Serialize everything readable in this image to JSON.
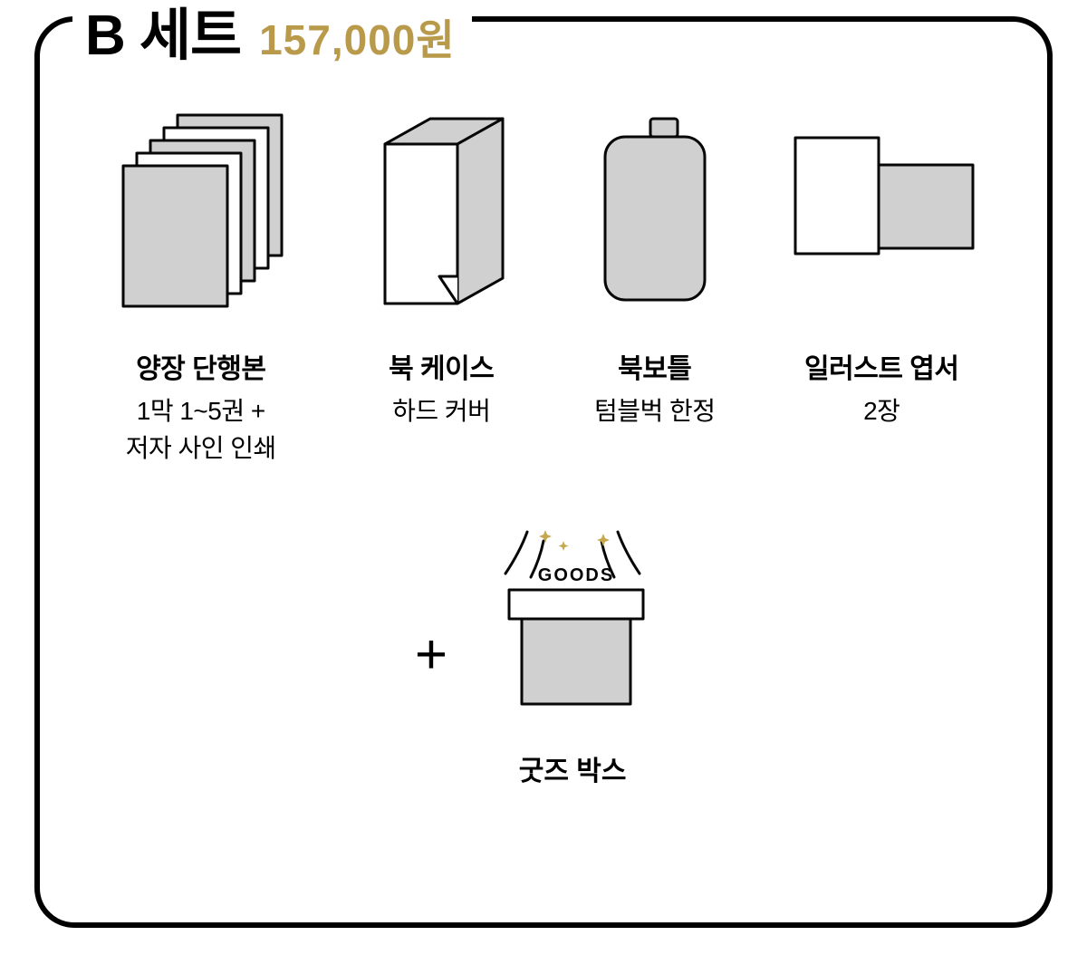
{
  "set": {
    "title": "B 세트",
    "price": "157,000원",
    "price_color": "#b89a4a"
  },
  "items": {
    "book": {
      "title": "양장 단행본",
      "sub": "1막 1~5권 +\n저자 사인 인쇄"
    },
    "case": {
      "title": "북 케이스",
      "sub": "하드 커버"
    },
    "bottle": {
      "title": "북보틀",
      "sub": "텀블벅 한정"
    },
    "postcard": {
      "title": "일러스트 엽서",
      "sub": "2장"
    },
    "goods": {
      "title": "굿즈 박스",
      "label": "GOODS"
    }
  },
  "colors": {
    "stroke": "#060606",
    "fill_grey": "#d0d0d0",
    "fill_white": "#ffffff",
    "sparkle": "#c5a84f"
  },
  "plus": "+"
}
